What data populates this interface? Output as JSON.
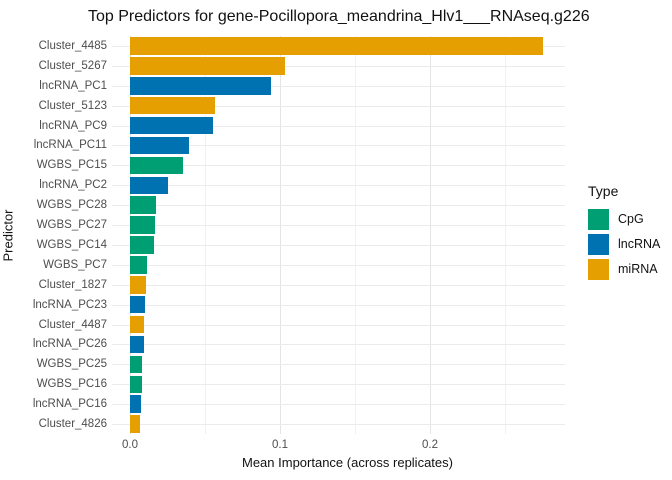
{
  "title": "Top Predictors for gene-Pocillopora_meandrina_Hlv1___RNAseq.g226",
  "chart_data": {
    "type": "bar",
    "orientation": "horizontal",
    "title": "Top Predictors for gene-Pocillopora_meandrina_Hlv1___RNAseq.g226",
    "xlabel": "Mean Importance (across replicates)",
    "ylabel": "Predictor",
    "xlim": [
      0,
      0.29
    ],
    "x_ticks": [
      0,
      0.1,
      0.2
    ],
    "x_tick_labels": [
      "0.0",
      "0.1",
      "0.2"
    ],
    "x_minor_gridlines": [
      0.05,
      0.15,
      0.25
    ],
    "grid": true,
    "background": "#ffffff",
    "categories": [
      "Cluster_4485",
      "Cluster_5267",
      "lncRNA_PC1",
      "Cluster_5123",
      "lncRNA_PC9",
      "lncRNA_PC11",
      "WGBS_PC15",
      "lncRNA_PC2",
      "WGBS_PC28",
      "WGBS_PC27",
      "WGBS_PC14",
      "WGBS_PC7",
      "Cluster_1827",
      "lncRNA_PC23",
      "Cluster_4487",
      "lncRNA_PC26",
      "WGBS_PC25",
      "WGBS_PC16",
      "lncRNA_PC16",
      "Cluster_4826"
    ],
    "values": [
      0.275,
      0.103,
      0.094,
      0.0565,
      0.055,
      0.039,
      0.035,
      0.0255,
      0.017,
      0.0165,
      0.016,
      0.011,
      0.0105,
      0.0098,
      0.0093,
      0.009,
      0.0082,
      0.008,
      0.0072,
      0.0067
    ],
    "types": [
      "miRNA",
      "miRNA",
      "lncRNA",
      "miRNA",
      "lncRNA",
      "lncRNA",
      "CpG",
      "lncRNA",
      "CpG",
      "CpG",
      "CpG",
      "CpG",
      "miRNA",
      "lncRNA",
      "miRNA",
      "lncRNA",
      "CpG",
      "CpG",
      "lncRNA",
      "miRNA"
    ],
    "legend": {
      "title": "Type",
      "position": "right",
      "entries": [
        {
          "label": "CpG",
          "color": "#009E73"
        },
        {
          "label": "lncRNA",
          "color": "#0072B2"
        },
        {
          "label": "miRNA",
          "color": "#E69F00"
        }
      ]
    },
    "colors": {
      "CpG": "#009E73",
      "lncRNA": "#0072B2",
      "miRNA": "#E69F00",
      "grid_major": "#e4e4e4",
      "grid_minor": "#f1f1f1",
      "axis_text": "#4d4d4d"
    }
  }
}
